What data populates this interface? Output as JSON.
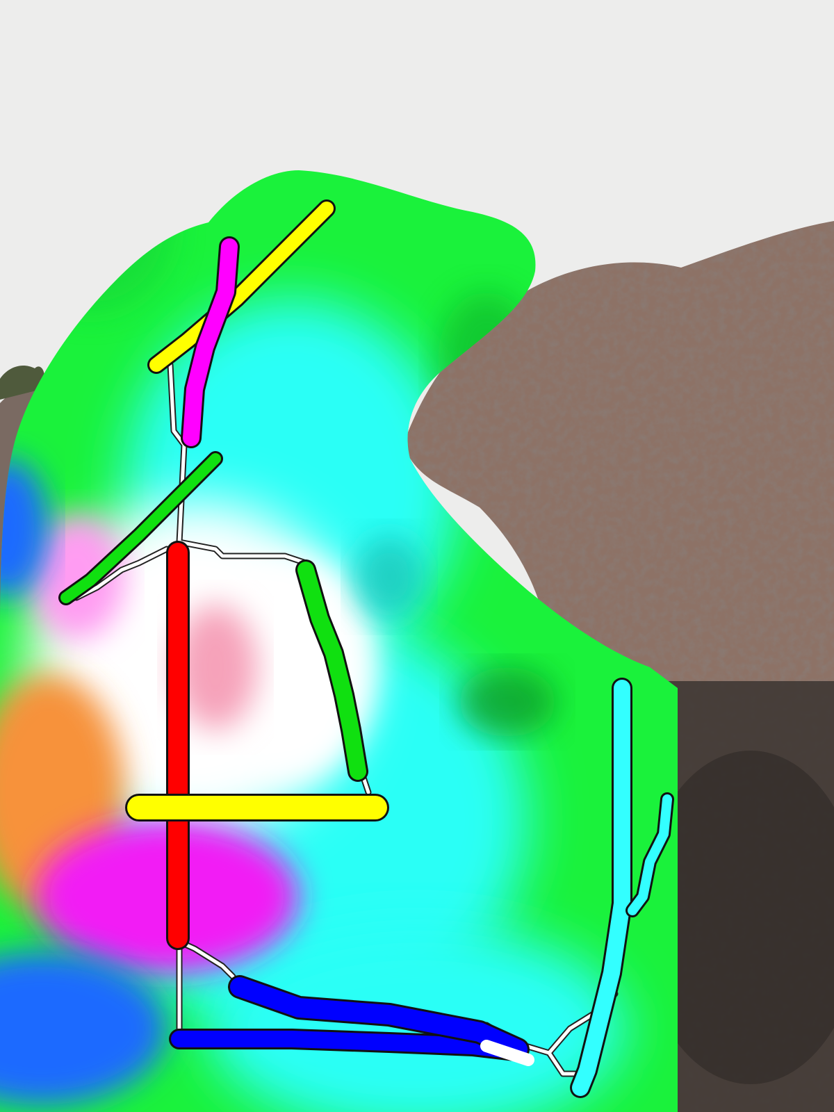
{
  "scene": {
    "description_hidden": "",
    "colors": {
      "sky": "#ececec",
      "rock": "#8c7064",
      "rock_dark": "#5e4b42",
      "shadow": "#3d3733",
      "overlay_green": "#19f23a",
      "overlay_cyan": "#28fbf4",
      "overlay_white": "#ffffff",
      "overlay_magenta": "#f21ef5",
      "overlay_orange": "#f7933c",
      "overlay_blue": "#1d6bff",
      "skeleton_red": "#ff0000",
      "skeleton_yellow": "#ffff00",
      "skeleton_green": "#10e010",
      "skeleton_magenta": "#ff00ff",
      "skeleton_blue": "#0000ff",
      "skeleton_cyan": "#33ffff",
      "skeleton_white": "#ffffff"
    },
    "labels": {}
  }
}
